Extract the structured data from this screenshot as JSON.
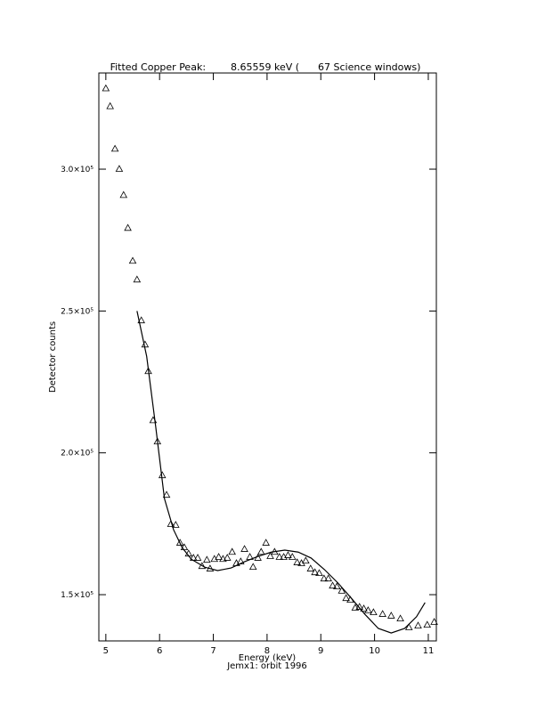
{
  "chart_data": {
    "type": "scatter",
    "title": "Fitted Copper Peak:        8.65559 keV (      67 Science windows)",
    "x_label": "Energy (keV)",
    "subtitle": "Jemx1: orbit 1996",
    "y_label": "Detector counts",
    "xlim": [
      4.87,
      11.15
    ],
    "ylim": [
      133700,
      333900
    ],
    "xticks": [
      5,
      6,
      7,
      8,
      9,
      10,
      11
    ],
    "yticks": [
      {
        "value": 150000,
        "label": "1.5×10⁵"
      },
      {
        "value": 200000,
        "label": "2.0×10⁵"
      },
      {
        "value": 250000,
        "label": "2.5×10⁵"
      },
      {
        "value": 300000,
        "label": "3.0×10⁵"
      }
    ],
    "series": [
      {
        "marker": "triangle",
        "color": "#000000",
        "x": [
          5.0,
          5.08,
          5.17,
          5.25,
          5.33,
          5.41,
          5.5,
          5.58,
          5.66,
          5.73,
          5.79,
          5.88,
          5.96,
          6.05,
          6.13,
          6.21,
          6.3,
          6.38,
          6.46,
          6.54,
          6.63,
          6.71,
          6.79,
          6.88,
          6.94,
          7.02,
          7.1,
          7.18,
          7.26,
          7.35,
          7.43,
          7.51,
          7.58,
          7.68,
          7.74,
          7.83,
          7.89,
          7.98,
          8.06,
          8.14,
          8.23,
          8.31,
          8.39,
          8.47,
          8.56,
          8.64,
          8.72,
          8.81,
          8.89,
          8.97,
          9.06,
          9.14,
          9.22,
          9.3,
          9.39,
          9.47,
          9.55,
          9.64,
          9.72,
          9.8,
          9.88,
          9.98,
          10.15,
          10.31,
          10.48,
          10.64,
          10.81,
          10.98,
          11.11
        ],
        "values": [
          328400,
          322100,
          307100,
          300000,
          290800,
          279200,
          267600,
          261000,
          246600,
          238100,
          228700,
          211400,
          203900,
          192000,
          185100,
          174800,
          174500,
          168200,
          166600,
          164400,
          162900,
          162900,
          160000,
          162200,
          159100,
          162500,
          163200,
          162500,
          162900,
          165000,
          161000,
          161600,
          166000,
          163200,
          159700,
          162900,
          165000,
          168200,
          163500,
          165000,
          163200,
          163200,
          163800,
          163200,
          161300,
          161000,
          161900,
          159100,
          157800,
          157500,
          155600,
          155600,
          153100,
          152800,
          151300,
          148700,
          148100,
          145300,
          145600,
          145000,
          144400,
          143700,
          143100,
          142500,
          141500,
          138400,
          139000,
          139300,
          140300
        ]
      },
      {
        "marker": "line",
        "color": "#000000",
        "x": [
          5.58,
          5.76,
          5.93,
          6.09,
          6.26,
          6.42,
          6.59,
          6.84,
          7.08,
          7.33,
          7.58,
          7.83,
          8.08,
          8.33,
          8.58,
          8.82,
          9.07,
          9.32,
          9.57,
          9.82,
          10.07,
          10.31,
          10.56,
          10.78,
          10.94
        ],
        "values": [
          250000,
          234000,
          208900,
          183900,
          172900,
          166600,
          162500,
          159700,
          158500,
          159400,
          161600,
          163500,
          165000,
          165700,
          165000,
          162900,
          158800,
          154100,
          148700,
          143100,
          138100,
          136500,
          138100,
          142200,
          147200
        ]
      }
    ]
  }
}
